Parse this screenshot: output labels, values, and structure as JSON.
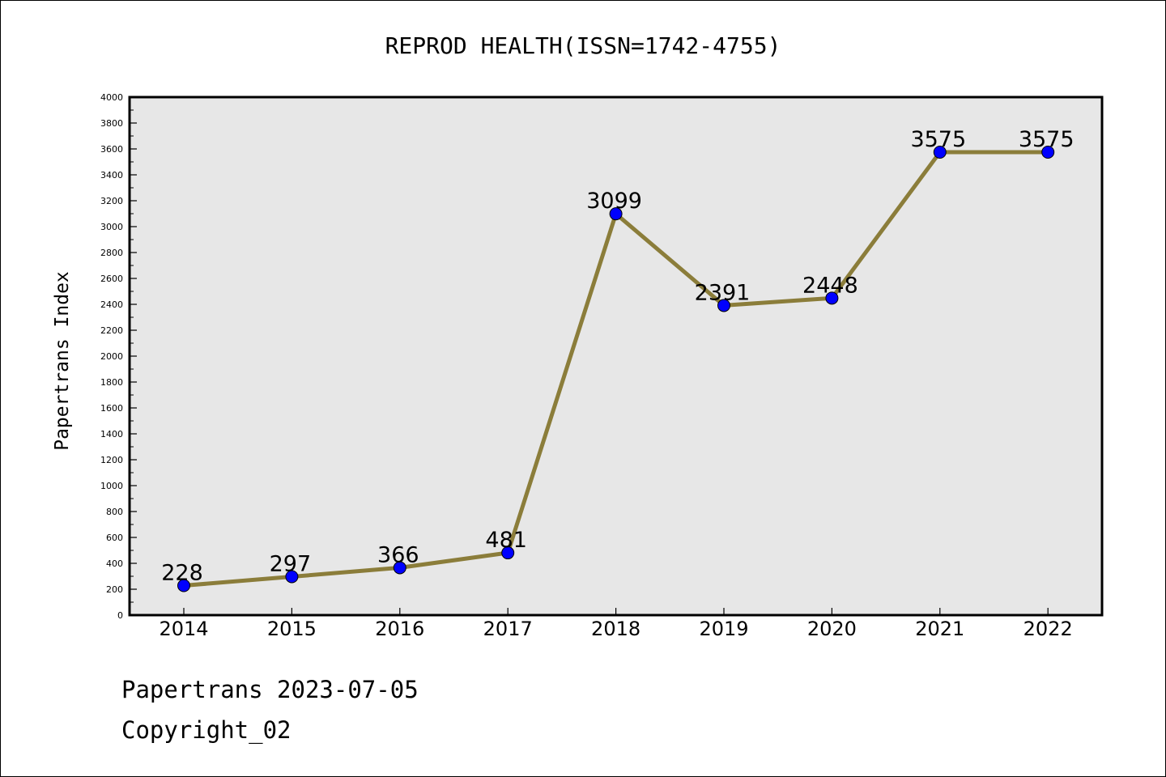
{
  "chart_data": {
    "type": "line",
    "title": "REPROD HEALTH(ISSN=1742-4755)",
    "xlabel": "",
    "ylabel": "Papertrans Index",
    "categories": [
      "2014",
      "2015",
      "2016",
      "2017",
      "2018",
      "2019",
      "2020",
      "2021",
      "2022"
    ],
    "values": [
      228,
      297,
      366,
      481,
      3099,
      2391,
      2448,
      3575,
      3575
    ],
    "data_labels": [
      "228",
      "297",
      "366",
      "481",
      "3099",
      "2391",
      "2448",
      "3575",
      "3575"
    ],
    "ylim": [
      0,
      4000
    ],
    "yticks": [
      "0",
      "200",
      "400",
      "600",
      "800",
      "1000",
      "1200",
      "1400",
      "1600",
      "1800",
      "2000",
      "2200",
      "2400",
      "2600",
      "2800",
      "3000",
      "3200",
      "3400",
      "3600",
      "3800",
      "4000"
    ],
    "grid": false,
    "legend": "none"
  },
  "colors": {
    "line": "#8B7D3A",
    "marker": "#0000FF",
    "plot_background": "#E7E7E7",
    "axes": "#000000"
  },
  "footer": {
    "date_text": "Papertrans 2023-07-05",
    "copyright_text": "Copyright_02"
  }
}
